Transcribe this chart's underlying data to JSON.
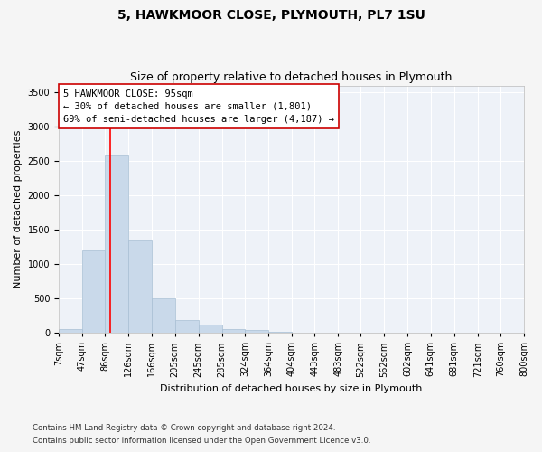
{
  "title_line1": "5, HAWKMOOR CLOSE, PLYMOUTH, PL7 1SU",
  "title_line2": "Size of property relative to detached houses in Plymouth",
  "xlabel": "Distribution of detached houses by size in Plymouth",
  "ylabel": "Number of detached properties",
  "bar_color": "#c9d9ea",
  "bar_edge_color": "#a8bfd4",
  "red_line_x": 95,
  "annotation_text": "5 HAWKMOOR CLOSE: 95sqm\n← 30% of detached houses are smaller (1,801)\n69% of semi-detached houses are larger (4,187) →",
  "footnote1": "Contains HM Land Registry data © Crown copyright and database right 2024.",
  "footnote2": "Contains public sector information licensed under the Open Government Licence v3.0.",
  "bin_edges": [
    7,
    47,
    86,
    126,
    166,
    205,
    245,
    285,
    324,
    364,
    404,
    443,
    483,
    522,
    562,
    602,
    641,
    681,
    721,
    760,
    800
  ],
  "bin_values": [
    50,
    1200,
    2580,
    1350,
    500,
    185,
    120,
    55,
    45,
    20,
    5,
    2,
    1,
    0,
    0,
    0,
    0,
    0,
    0,
    0
  ],
  "ylim": [
    0,
    3600
  ],
  "yticks": [
    0,
    500,
    1000,
    1500,
    2000,
    2500,
    3000,
    3500
  ],
  "background_color": "#eef2f8",
  "grid_color": "#ffffff",
  "title_fontsize": 10,
  "subtitle_fontsize": 9,
  "axis_label_fontsize": 8,
  "tick_fontsize": 7,
  "annotation_fontsize": 7.5,
  "annotation_box_facecolor": "#ffffff",
  "annotation_box_edgecolor": "#cc0000"
}
